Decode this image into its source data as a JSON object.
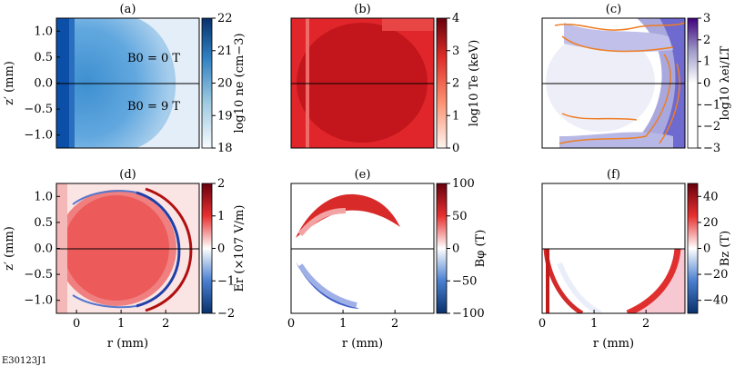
{
  "figure_id": "E30123J1",
  "chart_data": [
    {
      "type": "heatmap",
      "panel": "(a)",
      "xlabel": "",
      "ylabel": "z′ (mm)",
      "xlim": [
        -0.45,
        2.75
      ],
      "ylim": [
        -1.25,
        1.25
      ],
      "yticks": [
        "−1.0",
        "−0.5",
        "0.0",
        "0.5",
        "1.0"
      ],
      "xticks": [],
      "colorbar": {
        "label": "log10 ne (cm−3)",
        "ticks": [
          "18",
          "19",
          "20",
          "21",
          "22"
        ],
        "range": [
          18,
          22
        ]
      },
      "annotations": [
        "B0 = 0 T",
        "B0 = 9 T"
      ]
    },
    {
      "type": "heatmap",
      "panel": "(b)",
      "xlabel": "",
      "ylabel": "",
      "xlim": [
        -0.45,
        2.75
      ],
      "ylim": [
        -1.25,
        1.25
      ],
      "colorbar": {
        "label": "log10 Te (keV)",
        "ticks": [
          "0",
          "1",
          "2",
          "3",
          "4"
        ],
        "range": [
          0,
          4
        ]
      }
    },
    {
      "type": "heatmap",
      "panel": "(c)",
      "xlabel": "",
      "ylabel": "",
      "xlim": [
        -0.45,
        2.75
      ],
      "ylim": [
        -1.25,
        1.25
      ],
      "colorbar": {
        "label": "log10 λei/LT",
        "ticks": [
          "−3",
          "−2",
          "−1",
          "0",
          "1",
          "2",
          "3"
        ],
        "range": [
          -3,
          3
        ]
      }
    },
    {
      "type": "heatmap",
      "panel": "(d)",
      "xlabel": "r (mm)",
      "ylabel": "z′ (mm)",
      "xlim": [
        -0.45,
        2.75
      ],
      "ylim": [
        -1.25,
        1.25
      ],
      "xticks": [
        "0",
        "1",
        "2"
      ],
      "yticks": [
        "−1.0",
        "−0.5",
        "0.0",
        "0.5",
        "1.0"
      ],
      "colorbar": {
        "label": "Er (×107 V/m)",
        "ticks": [
          "−2",
          "−1",
          "0",
          "1",
          "2"
        ],
        "range": [
          -2,
          2
        ]
      }
    },
    {
      "type": "heatmap",
      "panel": "(e)",
      "xlabel": "r (mm)",
      "ylabel": "",
      "xlim": [
        0,
        2.75
      ],
      "ylim": [
        -1.25,
        1.25
      ],
      "xticks": [
        "0",
        "1",
        "2"
      ],
      "colorbar": {
        "label": "Bφ (T)",
        "ticks": [
          "−100",
          "−50",
          "0",
          "50",
          "100"
        ],
        "range": [
          -100,
          100
        ]
      }
    },
    {
      "type": "heatmap",
      "panel": "(f)",
      "xlabel": "r (mm)",
      "ylabel": "",
      "xlim": [
        0,
        2.75
      ],
      "ylim": [
        -1.25,
        1.25
      ],
      "xticks": [
        "0",
        "1",
        "2"
      ],
      "colorbar": {
        "label": "Bz (T)",
        "ticks": [
          "−40",
          "−20",
          "0",
          "20",
          "40"
        ],
        "range": [
          -50,
          50
        ]
      }
    }
  ]
}
